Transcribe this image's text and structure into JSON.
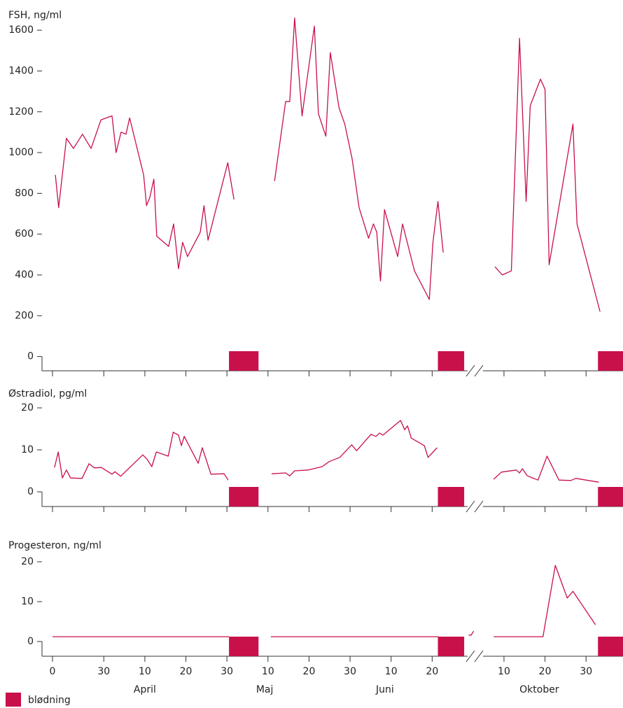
{
  "chart_data": [
    {
      "type": "line",
      "ylabel": "FSH, ng/ml",
      "color": "#c8104a",
      "ylim": [
        -70,
        1700
      ],
      "yticks": [
        0,
        200,
        400,
        600,
        800,
        1000,
        1200,
        1400,
        1600
      ],
      "xlim": [
        0,
        139
      ],
      "xticks": [
        0,
        12.5,
        22.5,
        32.5,
        42.5,
        52.5,
        62.5,
        72.5,
        82.5,
        92.5,
        110,
        120,
        130
      ],
      "bleeding": [
        [
          43,
          50.2
        ],
        [
          93.9,
          100.3
        ],
        [
          132.9,
          139
        ]
      ],
      "x": [
        0.7,
        1.5,
        3.4,
        5.1,
        7.3,
        9.4,
        11.8,
        14.5,
        15.5,
        16.7,
        17.9,
        18.8,
        22.2,
        22.9,
        23.7,
        24.7,
        25.4,
        28.3,
        29.5,
        30.7,
        31.7,
        32.9,
        36.0,
        36.9,
        37.9,
        42.7,
        44.2,
        null,
        54.1,
        56.8,
        57.8,
        59.0,
        60.8,
        63.8,
        64.8,
        66.6,
        67.7,
        69.8,
        71.2,
        73.0,
        74.7,
        77.0,
        78.2,
        79.0,
        79.9,
        80.9,
        84.1,
        85.3,
        88.2,
        91.8,
        92.7,
        93.9,
        95.2,
        null,
        107.8,
        109.6,
        111.8,
        113.8,
        115.4,
        116.4,
        118.9,
        120.0,
        121.0,
        126.8,
        127.8,
        133.4
      ],
      "values": [
        890,
        730,
        1070,
        1020,
        1090,
        1020,
        1160,
        1180,
        1000,
        1100,
        1090,
        1170,
        890,
        740,
        780,
        870,
        590,
        540,
        650,
        430,
        560,
        490,
        610,
        740,
        570,
        950,
        770,
        null,
        860,
        1250,
        1250,
        1660,
        1180,
        1620,
        1190,
        1080,
        1490,
        1220,
        1140,
        970,
        730,
        580,
        650,
        610,
        370,
        720,
        490,
        650,
        420,
        280,
        560,
        760,
        510,
        null,
        440,
        400,
        420,
        1560,
        760,
        1230,
        1360,
        1310,
        450,
        1140,
        650,
        220
      ]
    },
    {
      "type": "line",
      "ylabel": "Østradiol, pg/ml",
      "color": "#c8104a",
      "ylim": [
        -3.5,
        20
      ],
      "yticks": [
        0,
        10,
        20
      ],
      "xlim": [
        0,
        139
      ],
      "xticks": [
        0,
        12.5,
        22.5,
        32.5,
        42.5,
        52.5,
        62.5,
        72.5,
        82.5,
        92.5,
        110,
        120,
        130
      ],
      "bleeding": [
        [
          43,
          50.2
        ],
        [
          93.9,
          100.3
        ],
        [
          132.9,
          139
        ]
      ],
      "x": [
        0.5,
        1.4,
        2.4,
        3.4,
        4.4,
        7.2,
        8.9,
        10.2,
        11.9,
        14.5,
        15.2,
        16.6,
        22.0,
        23.0,
        24.2,
        25.3,
        28.2,
        29.4,
        30.7,
        31.4,
        32.1,
        35.5,
        36.5,
        38.6,
        41.8,
        42.8,
        null,
        53.4,
        56.8,
        57.8,
        59.0,
        62.3,
        65.7,
        67.4,
        70.0,
        72.9,
        74.1,
        77.6,
        78.8,
        79.7,
        80.5,
        84.8,
        85.8,
        86.5,
        87.4,
        90.6,
        91.5,
        93.7,
        null,
        107.5,
        109.4,
        113.0,
        113.8,
        114.5,
        115.7,
        118.3,
        120.5,
        123.4,
        126.3,
        127.5,
        133.1
      ],
      "values": [
        5.8,
        9.5,
        3.3,
        5.2,
        3.3,
        3.2,
        6.7,
        5.7,
        5.8,
        4.2,
        4.8,
        3.7,
        8.8,
        7.8,
        6.0,
        9.5,
        8.5,
        14.2,
        13.5,
        11.0,
        13.2,
        6.8,
        10.5,
        4.2,
        4.3,
        2.8,
        null,
        4.3,
        4.5,
        3.8,
        5.0,
        5.2,
        6.0,
        7.2,
        8.2,
        11.2,
        9.8,
        13.7,
        13.2,
        14.0,
        13.5,
        17.0,
        14.8,
        15.7,
        12.8,
        11.0,
        8.2,
        10.5,
        null,
        3.0,
        4.7,
        5.2,
        4.5,
        5.5,
        3.8,
        2.8,
        8.5,
        2.8,
        2.7,
        3.2,
        2.3
      ]
    },
    {
      "type": "line",
      "ylabel": "Progesteron, ng/ml",
      "color": "#c8104a",
      "ylim": [
        -3.7,
        20
      ],
      "yticks": [
        0,
        10,
        20
      ],
      "xlim": [
        0,
        139
      ],
      "xticks": [
        {
          "value": 0,
          "label": "0"
        },
        {
          "value": 12.5,
          "label": "30"
        },
        {
          "value": 22.5,
          "label": "10"
        },
        {
          "value": 32.5,
          "label": "20"
        },
        {
          "value": 42.5,
          "label": "30"
        },
        {
          "value": 52.5,
          "label": "10"
        },
        {
          "value": 62.5,
          "label": "20"
        },
        {
          "value": 72.5,
          "label": "30"
        },
        {
          "value": 82.5,
          "label": "10"
        },
        {
          "value": 92.5,
          "label": "20"
        },
        {
          "value": 110,
          "label": "10"
        },
        {
          "value": 120,
          "label": "20"
        },
        {
          "value": 130,
          "label": "30"
        }
      ],
      "months": [
        {
          "value": 22.5,
          "label": "April"
        },
        {
          "value": 51.7,
          "label": "Maj"
        },
        {
          "value": 81,
          "label": "Juni"
        },
        {
          "value": 118.6,
          "label": "Oktober"
        }
      ],
      "bleeding": [
        [
          43,
          50.2
        ],
        [
          93.9,
          100.3
        ],
        [
          132.9,
          139
        ]
      ],
      "x": [
        0,
        43.0,
        null,
        53.2,
        94.0,
        null,
        101.4,
        102.0,
        102.6,
        null,
        107.5,
        119.5,
        122.5,
        125.4,
        126.8,
        132.3
      ],
      "values": [
        1.2,
        1.2,
        null,
        1.2,
        1.2,
        null,
        1.6,
        1.6,
        2.6,
        null,
        1.2,
        1.2,
        19.1,
        10.9,
        12.6,
        4.2
      ]
    }
  ],
  "legend": {
    "label": "blødning",
    "color": "#c8104a"
  }
}
